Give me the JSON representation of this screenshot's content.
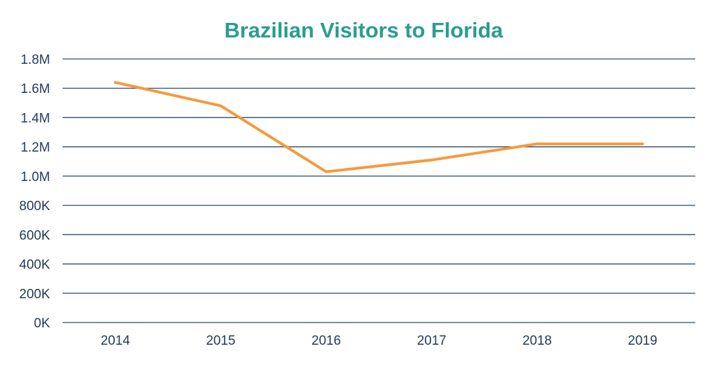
{
  "chart_data": {
    "type": "line",
    "title": "Brazilian Visitors to Florida",
    "categories": [
      "2014",
      "2015",
      "2016",
      "2017",
      "2018",
      "2019"
    ],
    "series": [
      {
        "values": [
          1640000,
          1480000,
          1030000,
          1110000,
          1220000,
          1220000
        ]
      }
    ],
    "ylim": [
      0,
      1800000
    ],
    "yticks": [
      {
        "value": 0,
        "label": "0K"
      },
      {
        "value": 200000,
        "label": "200K"
      },
      {
        "value": 400000,
        "label": "400K"
      },
      {
        "value": 600000,
        "label": "600K"
      },
      {
        "value": 800000,
        "label": "800K"
      },
      {
        "value": 1000000,
        "label": "1.0M"
      },
      {
        "value": 1200000,
        "label": "1.2M"
      },
      {
        "value": 1400000,
        "label": "1.4M"
      },
      {
        "value": 1600000,
        "label": "1.6M"
      },
      {
        "value": 1800000,
        "label": "1.8M"
      }
    ],
    "grid": true,
    "legend": "none",
    "colors": {
      "title": "#2a9d8f",
      "series": "#f59a3c",
      "axis_text": "#1f3b5c",
      "grid": "#2e4a6b"
    }
  }
}
